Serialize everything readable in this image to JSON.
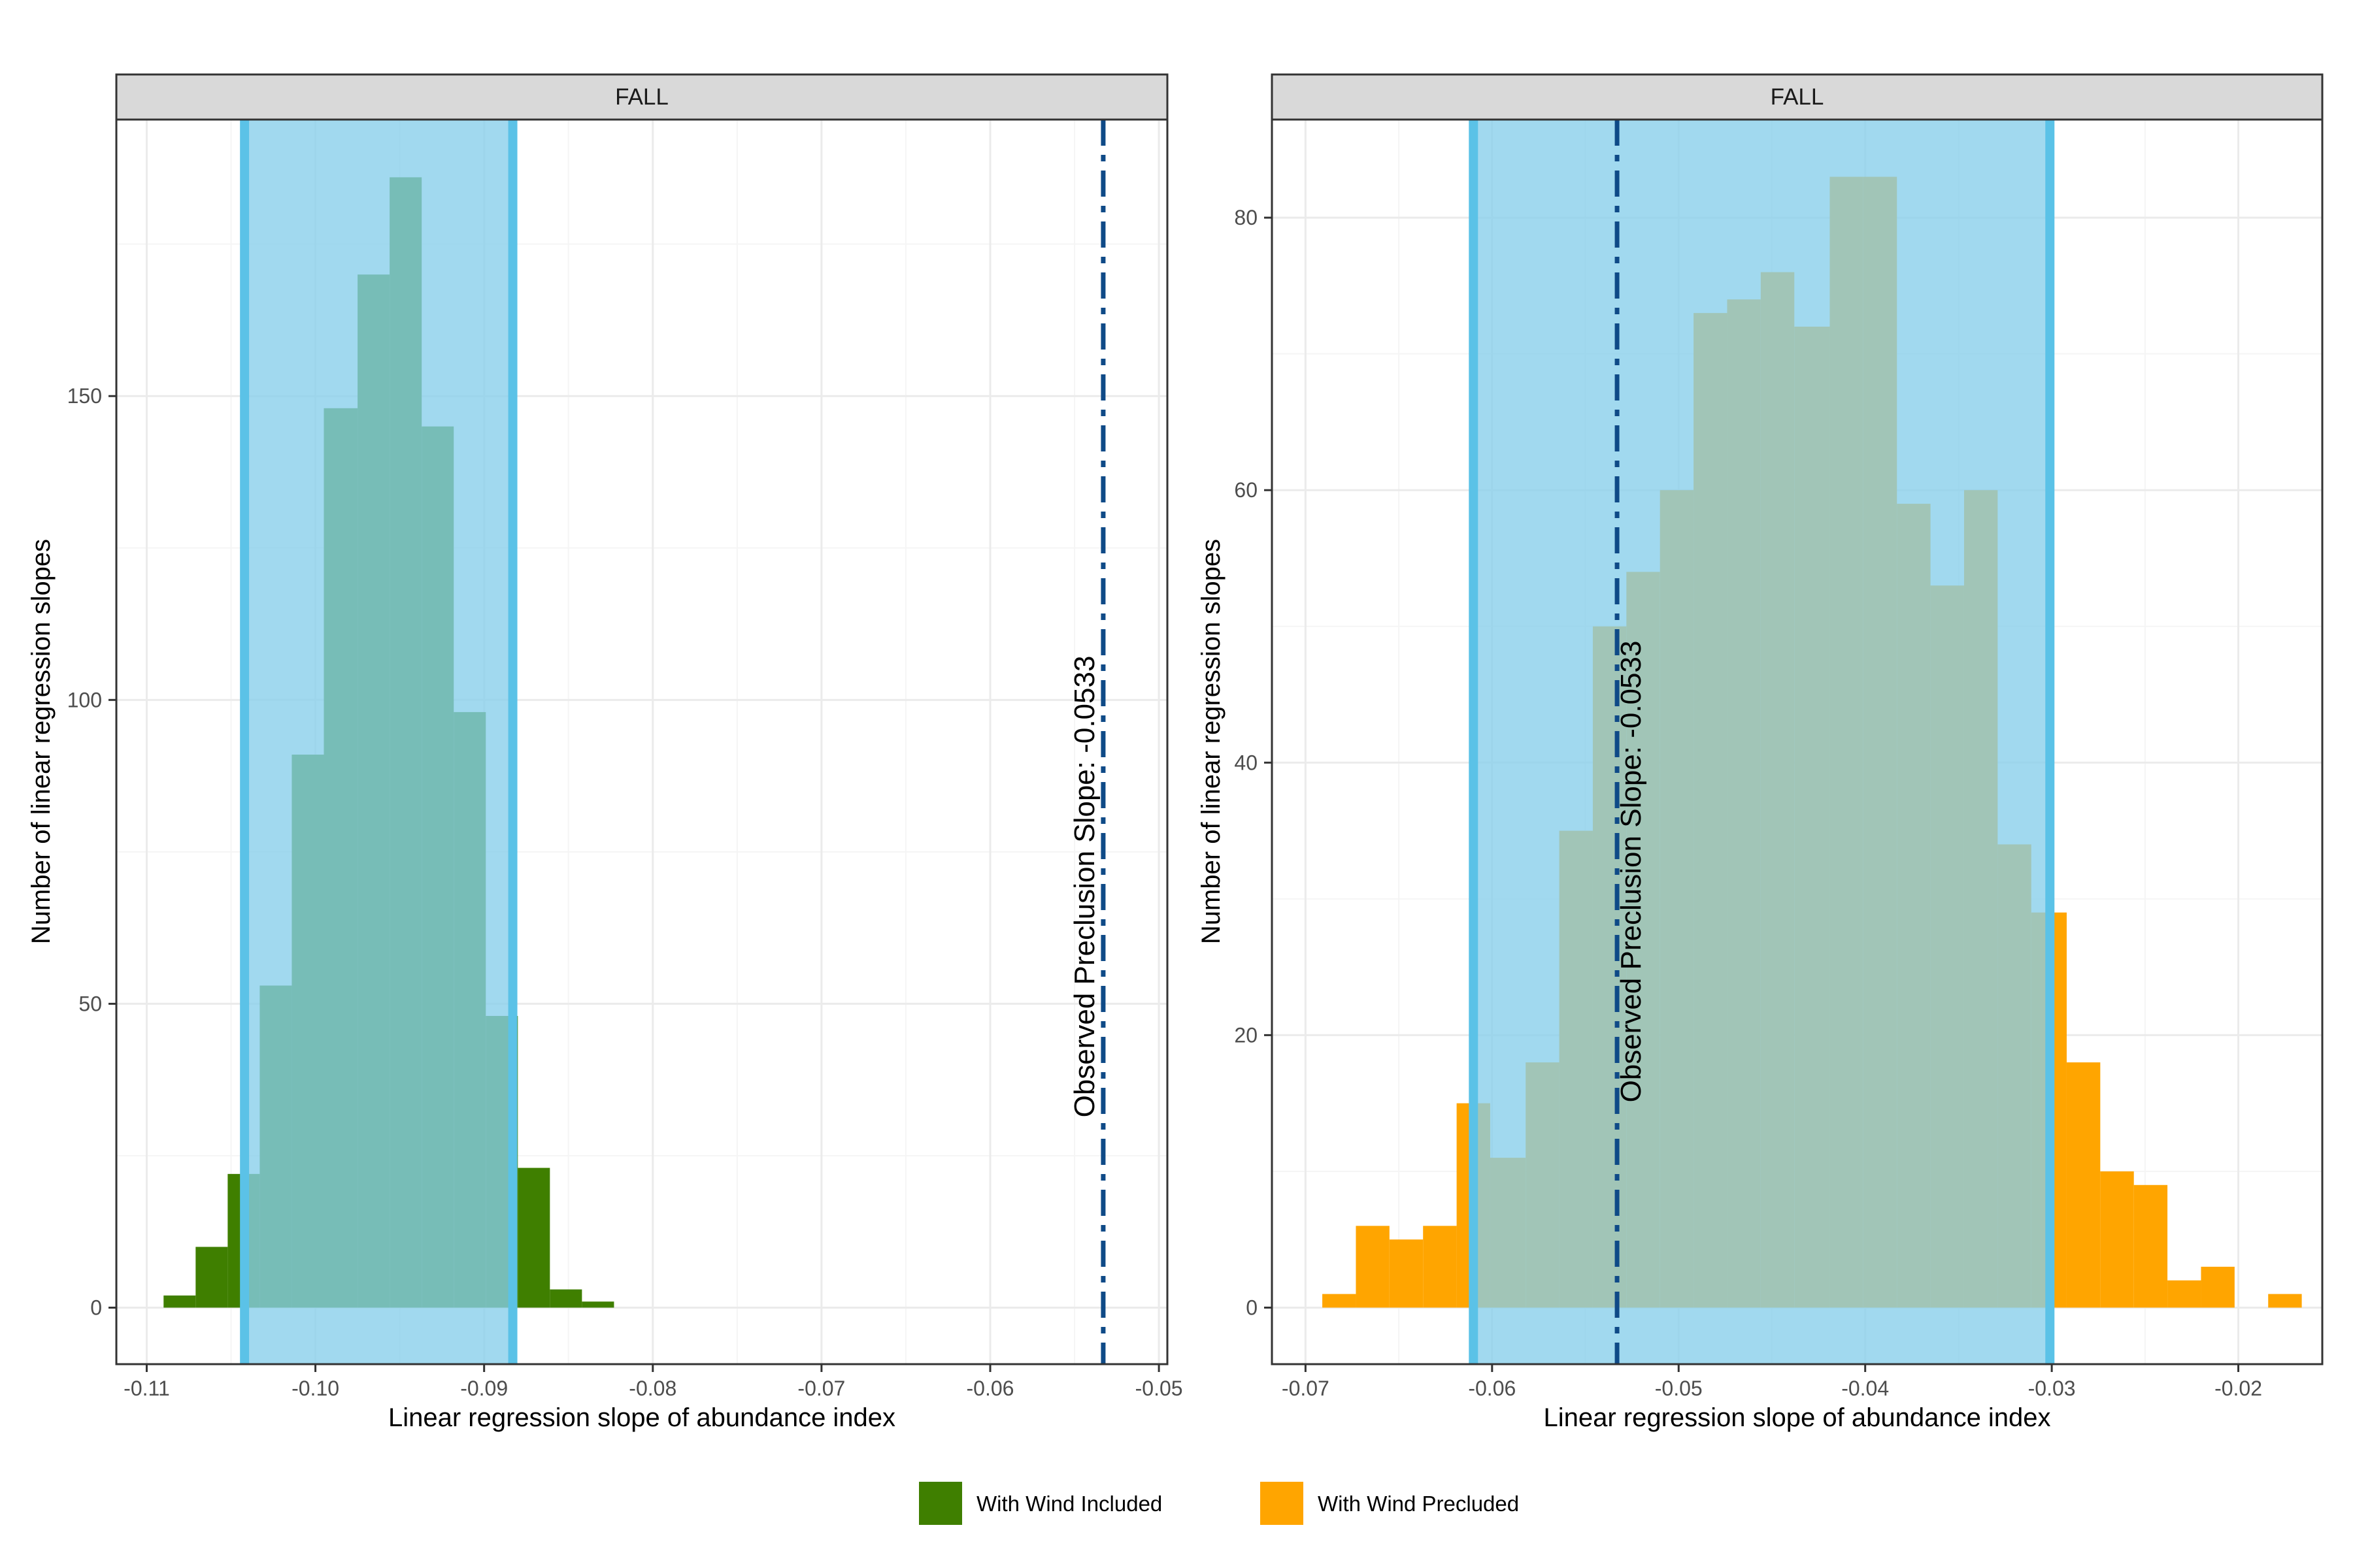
{
  "colors": {
    "included": "#3f7f00",
    "precluded": "#ffa500",
    "band_fill": "#87ceeb",
    "band_edge": "#5bc2e7",
    "observed_line": "#0f4a87",
    "panel_border": "#333333",
    "strip_fill": "#d9d9d9",
    "grid_major": "#ebebeb",
    "grid_minor": "#f5f5f5"
  },
  "legend": {
    "included_label": "With Wind Included",
    "precluded_label": "With Wind Precluded"
  },
  "chart_data": [
    {
      "type": "bar",
      "facet_label": "FALL",
      "xlabel": "Linear regression slope of abundance index",
      "ylabel": "Number of linear regression slopes",
      "xlim": [
        -0.1118,
        -0.0495
      ],
      "ylim": [
        -9.3,
        195.5
      ],
      "x_ticks": [
        -0.11,
        -0.1,
        -0.09,
        -0.08,
        -0.07,
        -0.06,
        -0.05
      ],
      "x_tick_labels": [
        "-0.11",
        "-0.10",
        "-0.09",
        "-0.08",
        "-0.07",
        "-0.06",
        "-0.05"
      ],
      "y_ticks": [
        0,
        50,
        100,
        150
      ],
      "y_tick_labels": [
        "0",
        "50",
        "100",
        "150"
      ],
      "grid": true,
      "series_key": "included",
      "bins": [
        {
          "x0": -0.109,
          "x1": -0.1071,
          "count": 2
        },
        {
          "x0": -0.1071,
          "x1": -0.1052,
          "count": 10
        },
        {
          "x0": -0.1052,
          "x1": -0.1033,
          "count": 22
        },
        {
          "x0": -0.1033,
          "x1": -0.1014,
          "count": 53
        },
        {
          "x0": -0.1014,
          "x1": -0.0995,
          "count": 91
        },
        {
          "x0": -0.0995,
          "x1": -0.0975,
          "count": 148
        },
        {
          "x0": -0.0975,
          "x1": -0.0956,
          "count": 170
        },
        {
          "x0": -0.0956,
          "x1": -0.0937,
          "count": 186
        },
        {
          "x0": -0.0937,
          "x1": -0.0918,
          "count": 145
        },
        {
          "x0": -0.0918,
          "x1": -0.0899,
          "count": 98
        },
        {
          "x0": -0.0899,
          "x1": -0.088,
          "count": 48
        },
        {
          "x0": -0.088,
          "x1": -0.0861,
          "count": 23
        },
        {
          "x0": -0.0861,
          "x1": -0.0842,
          "count": 3
        },
        {
          "x0": -0.0842,
          "x1": -0.0823,
          "count": 1
        }
      ],
      "interval_band": [
        -0.1042,
        -0.0883
      ],
      "observed_slope": -0.0533,
      "observed_label": "Observed Preclusion Slope: -0.0533"
    },
    {
      "type": "bar",
      "facet_label": "FALL",
      "xlabel": "Linear regression slope of abundance index",
      "ylabel": "Number of linear regression slopes",
      "xlim": [
        -0.0718,
        -0.0155
      ],
      "ylim": [
        -4.15,
        87.2
      ],
      "x_ticks": [
        -0.07,
        -0.06,
        -0.05,
        -0.04,
        -0.03,
        -0.02
      ],
      "x_tick_labels": [
        "-0.07",
        "-0.06",
        "-0.05",
        "-0.04",
        "-0.03",
        "-0.02"
      ],
      "y_ticks": [
        0,
        20,
        40,
        60,
        80
      ],
      "y_tick_labels": [
        "0",
        "20",
        "40",
        "60",
        "80"
      ],
      "grid": true,
      "series_key": "precluded",
      "bins": [
        {
          "x0": -0.0691,
          "x1": -0.0673,
          "count": 1
        },
        {
          "x0": -0.0673,
          "x1": -0.0655,
          "count": 6
        },
        {
          "x0": -0.0655,
          "x1": -0.0637,
          "count": 5
        },
        {
          "x0": -0.0637,
          "x1": -0.0619,
          "count": 6
        },
        {
          "x0": -0.0619,
          "x1": -0.0601,
          "count": 15
        },
        {
          "x0": -0.0601,
          "x1": -0.0582,
          "count": 11
        },
        {
          "x0": -0.0582,
          "x1": -0.0564,
          "count": 18
        },
        {
          "x0": -0.0564,
          "x1": -0.0546,
          "count": 35
        },
        {
          "x0": -0.0546,
          "x1": -0.0528,
          "count": 50
        },
        {
          "x0": -0.0528,
          "x1": -0.051,
          "count": 54
        },
        {
          "x0": -0.051,
          "x1": -0.0492,
          "count": 60
        },
        {
          "x0": -0.0492,
          "x1": -0.0474,
          "count": 73
        },
        {
          "x0": -0.0474,
          "x1": -0.0456,
          "count": 74
        },
        {
          "x0": -0.0456,
          "x1": -0.0438,
          "count": 76
        },
        {
          "x0": -0.0438,
          "x1": -0.0419,
          "count": 72
        },
        {
          "x0": -0.0419,
          "x1": -0.0401,
          "count": 83
        },
        {
          "x0": -0.0401,
          "x1": -0.0383,
          "count": 83
        },
        {
          "x0": -0.0383,
          "x1": -0.0365,
          "count": 59
        },
        {
          "x0": -0.0365,
          "x1": -0.0347,
          "count": 53
        },
        {
          "x0": -0.0347,
          "x1": -0.0329,
          "count": 60
        },
        {
          "x0": -0.0329,
          "x1": -0.0311,
          "count": 34
        },
        {
          "x0": -0.0311,
          "x1": -0.0292,
          "count": 29
        },
        {
          "x0": -0.0292,
          "x1": -0.0274,
          "count": 18
        },
        {
          "x0": -0.0274,
          "x1": -0.0256,
          "count": 10
        },
        {
          "x0": -0.0256,
          "x1": -0.0238,
          "count": 9
        },
        {
          "x0": -0.0238,
          "x1": -0.022,
          "count": 2
        },
        {
          "x0": -0.022,
          "x1": -0.0202,
          "count": 3
        },
        {
          "x0": -0.0202,
          "x1": -0.0184,
          "count": 0
        },
        {
          "x0": -0.0184,
          "x1": -0.0166,
          "count": 1
        }
      ],
      "interval_band": [
        -0.061,
        -0.0301
      ],
      "observed_slope": -0.0533,
      "observed_label": "Observed Preclusion Slope: -0.0533"
    }
  ]
}
